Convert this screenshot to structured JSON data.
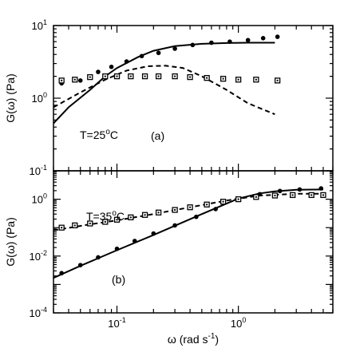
{
  "chart_data": [
    {
      "type": "scatter",
      "panel_label": "(a)",
      "annotation": {
        "text": "T=25",
        "sup": "o",
        "unit": "C"
      },
      "ylabel": "G(ω) (Pa)",
      "xscale": "log",
      "yscale": "log",
      "xlim": [
        0.03,
        6
      ],
      "ylim": [
        0.1,
        10
      ],
      "y_ticks": [
        {
          "value": 0.1,
          "base": "10",
          "exp": "-1"
        },
        {
          "value": 1,
          "base": "10",
          "exp": "0"
        },
        {
          "value": 10,
          "base": "10",
          "exp": "1"
        }
      ],
      "series": [
        {
          "role": "G' model",
          "style": "solid-line",
          "x": [
            0.03,
            0.04,
            0.06,
            0.08,
            0.1,
            0.15,
            0.2,
            0.3,
            0.5,
            0.8,
            1.2,
            2.0
          ],
          "y": [
            0.45,
            0.75,
            1.3,
            2.0,
            2.6,
            3.7,
            4.5,
            5.2,
            5.6,
            5.75,
            5.8,
            5.8
          ]
        },
        {
          "role": "G'' model",
          "style": "dashed-line",
          "x": [
            0.03,
            0.05,
            0.08,
            0.12,
            0.18,
            0.25,
            0.35,
            0.5,
            0.8,
            1.2,
            2.0
          ],
          "y": [
            0.75,
            1.2,
            1.8,
            2.4,
            2.75,
            2.8,
            2.6,
            2.0,
            1.3,
            0.85,
            0.6
          ]
        },
        {
          "role": "G' data",
          "style": "filled-circle",
          "x": [
            0.035,
            0.05,
            0.07,
            0.09,
            0.12,
            0.16,
            0.22,
            0.3,
            0.42,
            0.6,
            0.85,
            1.2,
            1.6,
            2.1
          ],
          "y": [
            1.6,
            1.75,
            2.3,
            2.7,
            3.2,
            3.8,
            4.2,
            4.8,
            5.4,
            5.8,
            6.0,
            6.3,
            6.7,
            7.0
          ]
        },
        {
          "role": "G'' data",
          "style": "open-square",
          "x": [
            0.035,
            0.045,
            0.06,
            0.08,
            0.1,
            0.13,
            0.17,
            0.22,
            0.3,
            0.4,
            0.55,
            0.75,
            1.0,
            1.4,
            2.1
          ],
          "y": [
            1.75,
            1.8,
            1.95,
            2.0,
            2.0,
            2.0,
            2.0,
            2.0,
            2.0,
            1.95,
            1.9,
            1.85,
            1.8,
            1.8,
            1.75
          ]
        }
      ]
    },
    {
      "type": "scatter",
      "panel_label": "(b)",
      "annotation": {
        "text": "T=35",
        "sup": "o",
        "unit": "C"
      },
      "ylabel": "G(ω) (Pa)",
      "xlabel": {
        "text": "ω (rad s",
        "sup": "-1",
        "close": ")"
      },
      "xscale": "log",
      "yscale": "log",
      "xlim": [
        0.03,
        6
      ],
      "ylim": [
        0.0001,
        10
      ],
      "x_ticks": [
        {
          "value": 0.1,
          "base": "10",
          "exp": "-1"
        },
        {
          "value": 1,
          "base": "10",
          "exp": "0"
        }
      ],
      "y_ticks": [
        {
          "value": 0.0001,
          "base": "10",
          "exp": "-4"
        },
        {
          "value": 0.01,
          "base": "10",
          "exp": "-2"
        },
        {
          "value": 1,
          "base": "10",
          "exp": "0"
        }
      ],
      "series": [
        {
          "role": "G' model",
          "style": "solid-line",
          "x": [
            0.03,
            0.05,
            0.1,
            0.2,
            0.5,
            1.0,
            1.5,
            2.0,
            3.0,
            5.0
          ],
          "y": [
            0.0017,
            0.0045,
            0.016,
            0.055,
            0.3,
            1.05,
            1.6,
            1.9,
            2.15,
            2.2
          ]
        },
        {
          "role": "G'' model",
          "style": "dashed-line",
          "x": [
            0.03,
            0.06,
            0.1,
            0.2,
            0.4,
            0.8,
            1.5,
            3.0,
            5.0
          ],
          "y": [
            0.08,
            0.13,
            0.18,
            0.3,
            0.52,
            0.9,
            1.35,
            1.55,
            1.55
          ]
        },
        {
          "role": "G' data",
          "style": "filled-circle",
          "x": [
            0.035,
            0.05,
            0.07,
            0.1,
            0.14,
            0.2,
            0.3,
            0.45,
            0.65,
            1.0,
            1.5,
            2.2,
            3.2,
            4.8
          ],
          "y": [
            0.0025,
            0.0048,
            0.009,
            0.018,
            0.034,
            0.062,
            0.12,
            0.24,
            0.45,
            0.95,
            1.5,
            1.95,
            2.2,
            2.4
          ]
        },
        {
          "role": "G'' data",
          "style": "open-square",
          "x": [
            0.035,
            0.045,
            0.06,
            0.08,
            0.1,
            0.13,
            0.17,
            0.22,
            0.3,
            0.4,
            0.55,
            0.75,
            1.0,
            1.4,
            2.0,
            2.8,
            4.0,
            5.0
          ],
          "y": [
            0.1,
            0.12,
            0.14,
            0.16,
            0.19,
            0.23,
            0.28,
            0.34,
            0.42,
            0.52,
            0.65,
            0.82,
            1.0,
            1.2,
            1.35,
            1.4,
            1.4,
            1.4
          ]
        }
      ]
    }
  ]
}
